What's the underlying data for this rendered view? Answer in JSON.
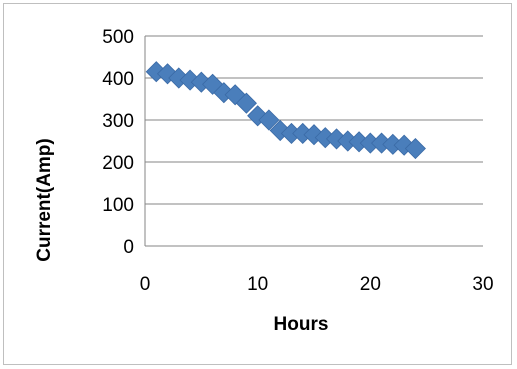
{
  "chart_data": {
    "type": "scatter",
    "title": "",
    "xlabel": "Hours",
    "ylabel": "Current(Amp)",
    "xlim": [
      0,
      30
    ],
    "ylim": [
      0,
      500
    ],
    "x_ticks": [
      "0",
      "10",
      "20",
      "30"
    ],
    "y_ticks": [
      "0",
      "100",
      "200",
      "300",
      "400",
      "500"
    ],
    "grid": "horizontal",
    "legend": "none",
    "marker": "diamond",
    "marker_color": "#4a7ebb",
    "series": [
      {
        "x": [
          1,
          2,
          3,
          4,
          5,
          6,
          7,
          8,
          9,
          10,
          11,
          12,
          13,
          14,
          15,
          16,
          17,
          18,
          19,
          20,
          21,
          22,
          23,
          24
        ],
        "values": [
          415,
          410,
          400,
          395,
          390,
          385,
          365,
          360,
          340,
          310,
          300,
          275,
          268,
          268,
          265,
          258,
          255,
          250,
          248,
          245,
          245,
          242,
          240,
          232
        ]
      }
    ]
  }
}
